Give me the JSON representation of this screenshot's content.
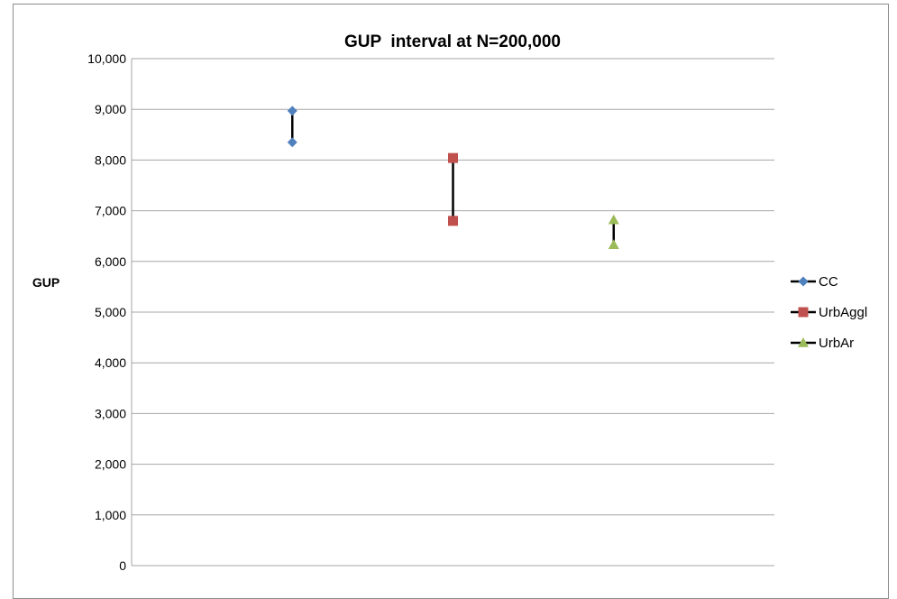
{
  "chart_data": {
    "type": "line",
    "title": "GUP  interval at N=200,000",
    "xlabel": "",
    "ylabel": "GUP",
    "ylim": [
      0,
      10000
    ],
    "yticks": [
      "0",
      "1,000",
      "2,000",
      "3,000",
      "4,000",
      "5,000",
      "6,000",
      "7,000",
      "8,000",
      "9,000",
      "10,000"
    ],
    "ytick_values": [
      0,
      1000,
      2000,
      3000,
      4000,
      5000,
      6000,
      7000,
      8000,
      9000,
      10000
    ],
    "grid": true,
    "legend_position": "right",
    "series": [
      {
        "name": "CC",
        "marker": "diamond",
        "color": "#4F81BD",
        "x_index": 1,
        "values": [
          8350,
          8970
        ]
      },
      {
        "name": "UrbAggl",
        "marker": "square",
        "color": "#C0504D",
        "x_index": 2,
        "values": [
          6800,
          8040
        ]
      },
      {
        "name": "UrbAr",
        "marker": "triangle",
        "color": "#9BBB59",
        "x_index": 3,
        "values": [
          6330,
          6820
        ]
      }
    ],
    "line_color": "#000000"
  }
}
